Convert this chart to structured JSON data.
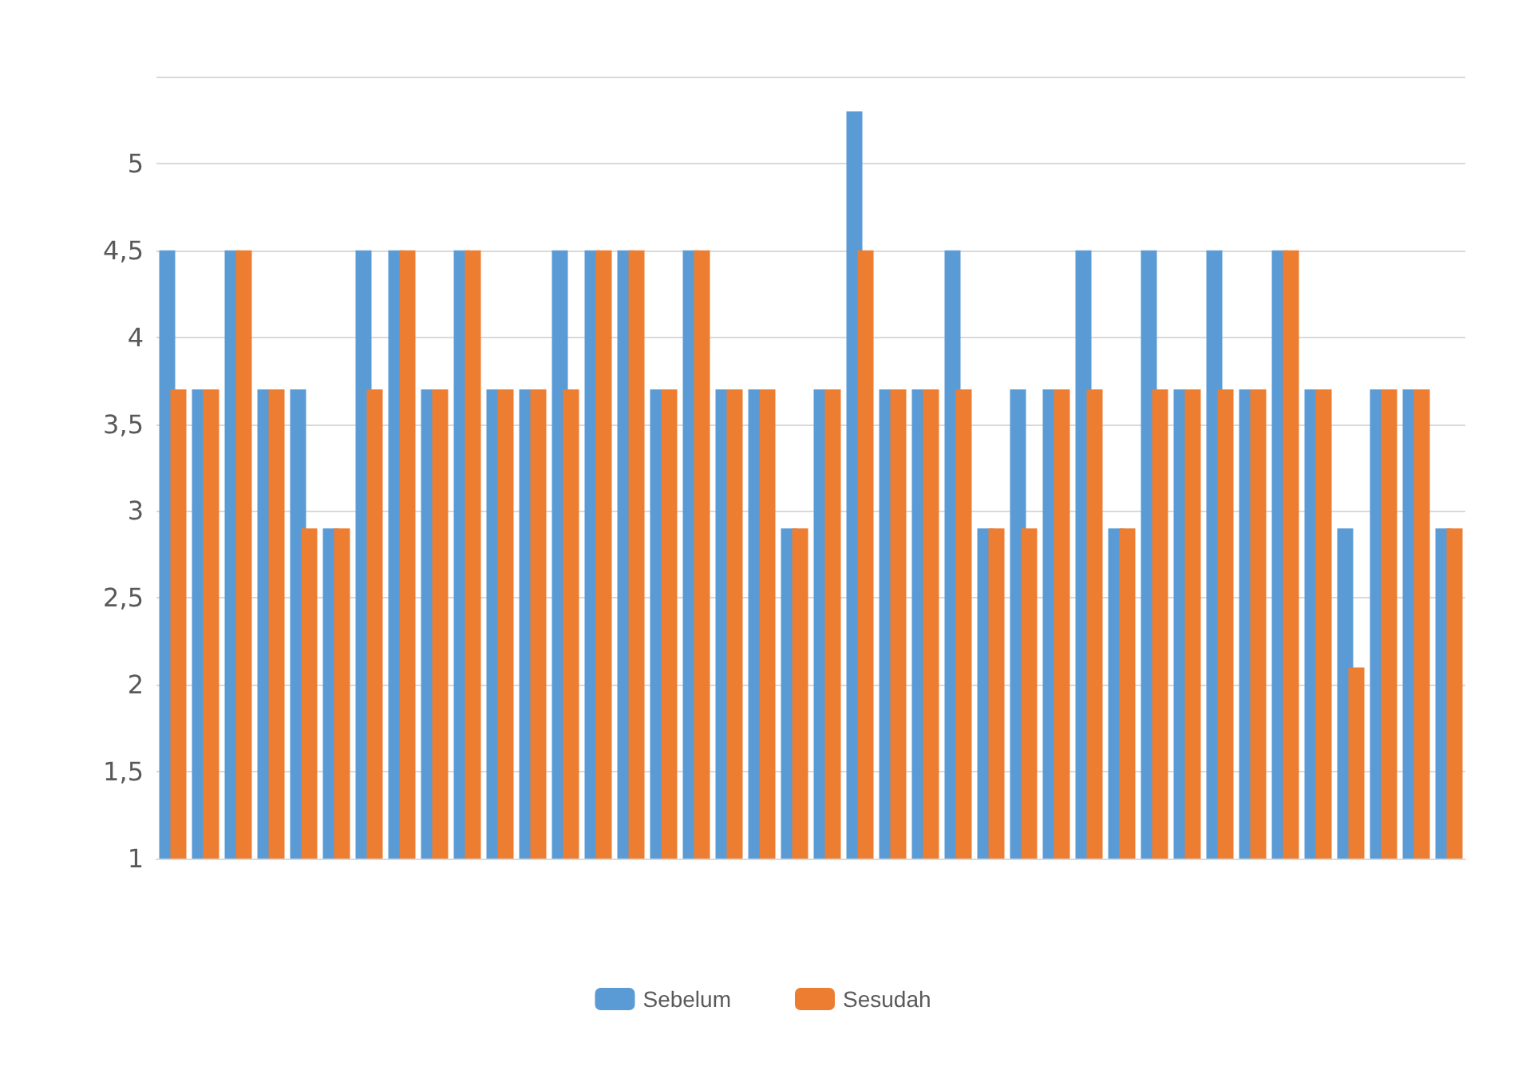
{
  "chart_data": {
    "type": "bar",
    "categories": [
      null,
      null,
      null,
      null,
      null,
      null,
      null,
      null,
      null,
      null,
      null,
      null,
      null,
      null,
      null,
      null,
      null,
      null,
      null,
      null,
      null,
      null,
      null,
      null,
      null,
      null,
      null,
      null,
      null,
      null,
      null,
      null,
      null,
      null,
      null,
      null,
      null,
      null,
      null,
      null
    ],
    "series": [
      {
        "name": "Sebelum",
        "color": "#5b9bd5",
        "values": [
          4.5,
          3.7,
          4.5,
          3.7,
          3.7,
          2.9,
          4.5,
          4.5,
          3.7,
          4.5,
          3.7,
          3.7,
          4.5,
          4.5,
          4.5,
          3.7,
          4.5,
          3.7,
          3.7,
          2.9,
          3.7,
          5.3,
          3.7,
          3.7,
          4.5,
          2.9,
          3.7,
          3.7,
          4.5,
          2.9,
          4.5,
          3.7,
          4.5,
          3.7,
          4.5,
          3.7,
          2.9,
          3.7,
          3.7,
          2.9
        ]
      },
      {
        "name": "Sesudah",
        "color": "#ed7d31",
        "values": [
          3.7,
          3.7,
          4.5,
          3.7,
          2.9,
          2.9,
          3.7,
          4.5,
          3.7,
          4.5,
          3.7,
          3.7,
          3.7,
          4.5,
          4.5,
          3.7,
          4.5,
          3.7,
          3.7,
          2.9,
          3.7,
          4.5,
          3.7,
          3.7,
          3.7,
          2.9,
          2.9,
          3.7,
          3.7,
          2.9,
          3.7,
          3.7,
          3.7,
          3.7,
          4.5,
          3.7,
          2.1,
          3.7,
          3.7,
          2.9
        ]
      }
    ],
    "ylim": [
      1,
      5.5
    ],
    "yticks": [
      1,
      {
        "value": 1.5,
        "label": "1,5"
      },
      2,
      {
        "value": 2.5,
        "label": "2,5"
      },
      3,
      {
        "value": 3.5,
        "label": "3,5"
      },
      4,
      {
        "value": 4.5,
        "label": "4,5"
      },
      5,
      {
        "value": 5.5,
        "label": null
      }
    ],
    "grid": "y",
    "legend": "bottom"
  }
}
